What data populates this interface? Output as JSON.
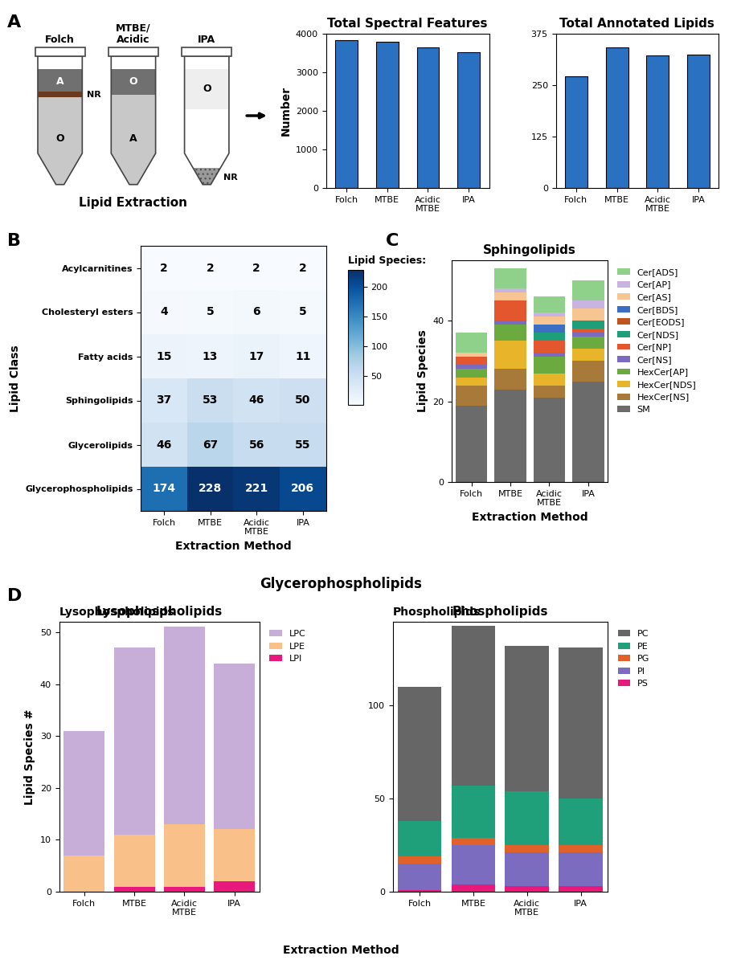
{
  "panel_labels": [
    "A",
    "B",
    "C",
    "D"
  ],
  "extraction_diagram": {
    "title": "Lipid Extraction",
    "tubes": [
      {
        "label": "Folch",
        "layers": [
          "A",
          "O"
        ],
        "interphase": "NR"
      },
      {
        "label": "MTBE/\nAcidic",
        "layers": [
          "O",
          "A"
        ]
      },
      {
        "label": "IPA",
        "layers": [
          "O"
        ],
        "pellet": "NR"
      }
    ]
  },
  "glycerophospholipids_panel": {
    "title": "Glycerophospholipids",
    "x_label": "Extraction Method"
  },
  "chart_data": [
    {
      "type": "bar",
      "title": "Total Spectral Features",
      "categories": [
        "Folch",
        "MTBE",
        "Acidic\nMTBE",
        "IPA"
      ],
      "values": [
        3840,
        3800,
        3650,
        3530
      ],
      "y_label": "Number",
      "color": "#2a72c1",
      "ylim": [
        0,
        4000
      ],
      "yticks": [
        0,
        1000,
        2000,
        3000,
        4000
      ]
    },
    {
      "type": "bar",
      "title": "Total Annotated Lipids",
      "categories": [
        "Folch",
        "MTBE",
        "Acidic\nMTBE",
        "IPA"
      ],
      "values": [
        272,
        342,
        322,
        324
      ],
      "color": "#2a72c1",
      "ylim": [
        0,
        375
      ],
      "yticks": [
        0,
        125,
        250,
        375
      ]
    },
    {
      "type": "heatmap",
      "x_label": "Extraction Method",
      "y_label": "Lipid Class",
      "columns": [
        "Folch",
        "MTBE",
        "Acidic\nMTBE",
        "IPA"
      ],
      "rows": [
        "Acylcarnitines",
        "Cholesteryl esters",
        "Fatty acids",
        "Sphingolipids",
        "Glycerolipids",
        "Glycerophospholipids"
      ],
      "cells": [
        [
          2,
          2,
          2,
          2
        ],
        [
          4,
          5,
          6,
          5
        ],
        [
          15,
          13,
          17,
          11
        ],
        [
          37,
          53,
          46,
          50
        ],
        [
          46,
          67,
          56,
          55
        ],
        [
          174,
          228,
          221,
          206
        ]
      ],
      "colorbar": {
        "label": "Lipid Species:",
        "range": [
          2,
          228
        ],
        "ticks": [
          50,
          100,
          150,
          200
        ]
      },
      "data_labels": true
    },
    {
      "type": "bar",
      "stacked": true,
      "title": "Sphingolipids",
      "x_label": "Extraction Method",
      "y_label": "Lipid Species",
      "categories": [
        "Folch",
        "MTBE",
        "Acidic\nMTBE",
        "IPA"
      ],
      "ylim": [
        0,
        55
      ],
      "yticks": [
        0,
        20,
        40
      ],
      "legend": "right",
      "series": [
        {
          "name": "SM",
          "color": "#6b6b6b",
          "values": [
            19,
            23,
            21,
            25
          ]
        },
        {
          "name": "HexCer[NS]",
          "color": "#a87a3a",
          "values": [
            5,
            5,
            3,
            5
          ]
        },
        {
          "name": "HexCer[NDS]",
          "color": "#e8b42a",
          "values": [
            2,
            7,
            3,
            3
          ]
        },
        {
          "name": "HexCer[AP]",
          "color": "#6aaa3e",
          "values": [
            2,
            4,
            4,
            3
          ]
        },
        {
          "name": "Cer[NS]",
          "color": "#7a6bbf",
          "values": [
            1,
            1,
            1,
            1
          ]
        },
        {
          "name": "Cer[NP]",
          "color": "#e4572e",
          "values": [
            2,
            5,
            3,
            1
          ]
        },
        {
          "name": "Cer[NDS]",
          "color": "#1f9e7a",
          "values": [
            0,
            0,
            2,
            2
          ]
        },
        {
          "name": "Cer[EODS]",
          "color": "#c0561f",
          "values": [
            0,
            0,
            0,
            0
          ]
        },
        {
          "name": "Cer[BDS]",
          "color": "#3a6fc4",
          "values": [
            0,
            0,
            2,
            0
          ]
        },
        {
          "name": "Cer[AS]",
          "color": "#f7c592",
          "values": [
            1,
            2,
            2,
            3
          ]
        },
        {
          "name": "Cer[AP]",
          "color": "#c9b3e0",
          "values": [
            0,
            1,
            1,
            2
          ]
        },
        {
          "name": "Cer[ADS]",
          "color": "#8fd18a",
          "values": [
            5,
            5,
            4,
            5
          ]
        }
      ]
    },
    {
      "type": "bar",
      "stacked": true,
      "title": "Lysophospholipids",
      "y_label": "Lipid Species #",
      "categories": [
        "Folch",
        "MTBE",
        "Acidic\nMTBE",
        "IPA"
      ],
      "ylim": [
        0,
        52
      ],
      "yticks": [
        0,
        10,
        20,
        30,
        40,
        50
      ],
      "legend": "right",
      "series": [
        {
          "name": "LPI",
          "color": "#e8197c",
          "values": [
            0,
            1,
            1,
            2
          ]
        },
        {
          "name": "LPE",
          "color": "#f9c08a",
          "values": [
            7,
            10,
            12,
            10
          ]
        },
        {
          "name": "LPC",
          "color": "#c7aed8",
          "values": [
            24,
            36,
            38,
            32
          ]
        }
      ]
    },
    {
      "type": "bar",
      "stacked": true,
      "title": "Phospholipids",
      "categories": [
        "Folch",
        "MTBE",
        "Acidic\nMTBE",
        "IPA"
      ],
      "ylim": [
        0,
        145
      ],
      "yticks": [
        0,
        50,
        100
      ],
      "legend": "right",
      "series": [
        {
          "name": "PS",
          "color": "#e8197c",
          "values": [
            1,
            4,
            3,
            3
          ]
        },
        {
          "name": "PI",
          "color": "#7b6cc0",
          "values": [
            14,
            21,
            18,
            18
          ]
        },
        {
          "name": "PG",
          "color": "#e0622a",
          "values": [
            4,
            4,
            4,
            4
          ]
        },
        {
          "name": "PE",
          "color": "#20a07a",
          "values": [
            19,
            28,
            29,
            25
          ]
        },
        {
          "name": "PC",
          "color": "#666666",
          "values": [
            72,
            86,
            78,
            81
          ]
        }
      ]
    }
  ]
}
